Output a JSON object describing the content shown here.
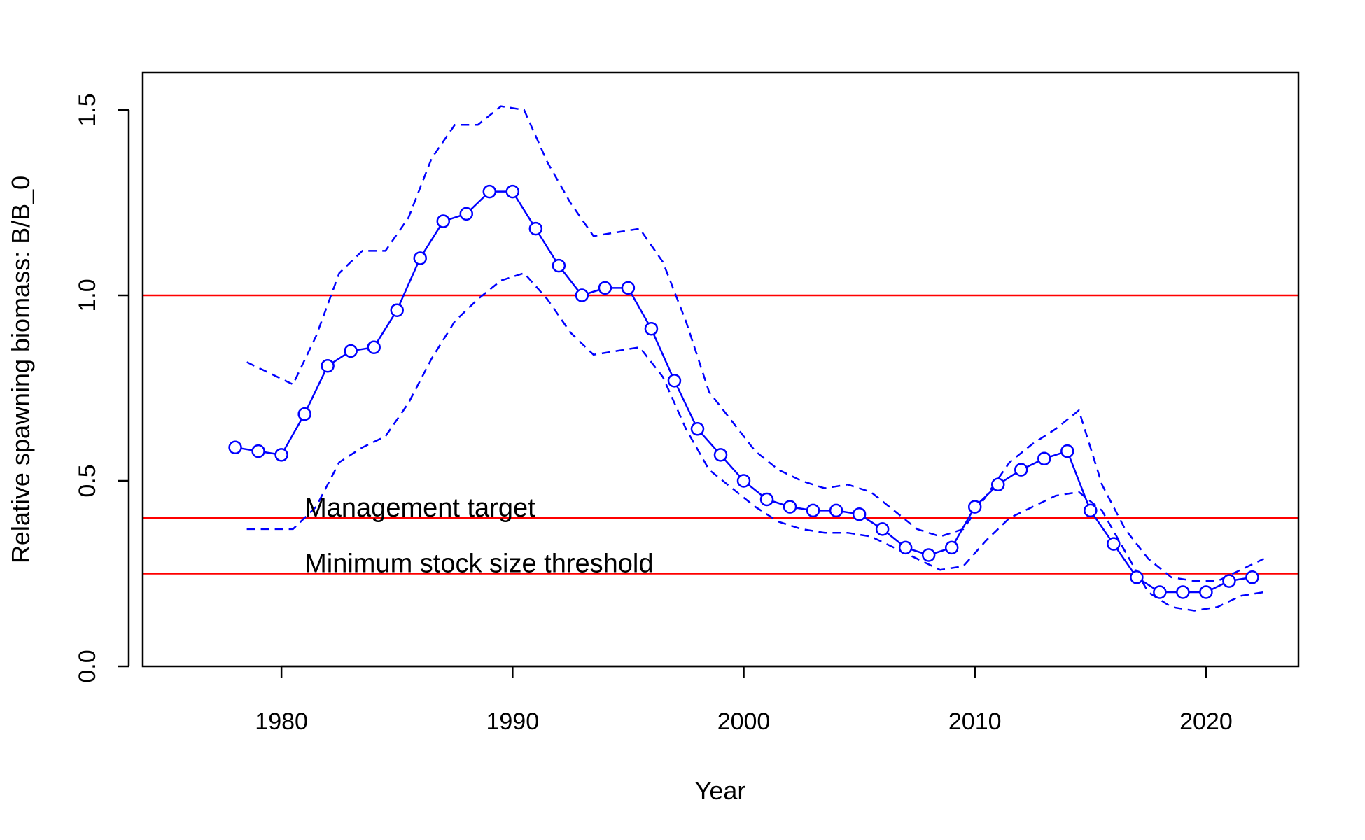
{
  "chart_data": {
    "type": "line",
    "title": "",
    "xlabel": "Year",
    "ylabel": "Relative spawning biomass: B/B_0",
    "xlim": [
      1974,
      2024
    ],
    "ylim": [
      0,
      1.6
    ],
    "x_ticks": [
      "1980",
      "1990",
      "2000",
      "2010",
      "2020"
    ],
    "y_ticks": [
      "0.0",
      "0.5",
      "1.0",
      "1.5"
    ],
    "grid": false,
    "legend": "none",
    "colors": {
      "series": "#0000ff",
      "reference": "#ff0000",
      "axis": "#000000"
    },
    "series": [
      {
        "style": "solid line with open circles",
        "x": [
          1978,
          1979,
          1980,
          1981,
          1982,
          1983,
          1984,
          1985,
          1986,
          1987,
          1988,
          1989,
          1990,
          1991,
          1992,
          1993,
          1994,
          1995,
          1996,
          1997,
          1998,
          1999,
          2000,
          2001,
          2002,
          2003,
          2004,
          2005,
          2006,
          2007,
          2008,
          2009,
          2010,
          2011,
          2012,
          2013,
          2014,
          2015,
          2016,
          2017,
          2018,
          2019,
          2020,
          2021,
          2022
        ],
        "values": [
          0.59,
          0.58,
          0.57,
          0.68,
          0.81,
          0.85,
          0.86,
          0.96,
          1.1,
          1.2,
          1.22,
          1.28,
          1.28,
          1.18,
          1.08,
          1.0,
          1.02,
          1.02,
          0.91,
          0.77,
          0.64,
          0.57,
          0.5,
          0.45,
          0.43,
          0.42,
          0.42,
          0.41,
          0.37,
          0.32,
          0.3,
          0.32,
          0.43,
          0.49,
          0.53,
          0.56,
          0.58,
          0.42,
          0.33,
          0.24,
          0.2,
          0.2,
          0.2,
          0.23,
          0.24
        ]
      },
      {
        "style": "dashed upper bound",
        "x": [
          1978.5,
          1980.5,
          1981.5,
          1982.5,
          1983.5,
          1984.5,
          1985.5,
          1986.5,
          1987.5,
          1988.5,
          1989.5,
          1990.5,
          1991.5,
          1992.5,
          1993.5,
          1994.5,
          1995.5,
          1996.5,
          1997.5,
          1998.5,
          1999.5,
          2000.5,
          2001.5,
          2002.5,
          2003.5,
          2004.5,
          2005.5,
          2006.5,
          2007.5,
          2008.5,
          2009.5,
          2010.5,
          2011.5,
          2012.5,
          2013.5,
          2014.5,
          2015.5,
          2016.5,
          2017.5,
          2018.5,
          2019.5,
          2020.5,
          2021.5,
          2022.5
        ],
        "values": [
          0.82,
          0.76,
          0.89,
          1.06,
          1.12,
          1.12,
          1.21,
          1.37,
          1.46,
          1.46,
          1.51,
          1.5,
          1.36,
          1.25,
          1.16,
          1.17,
          1.18,
          1.09,
          0.93,
          0.74,
          0.66,
          0.58,
          0.53,
          0.5,
          0.48,
          0.49,
          0.47,
          0.42,
          0.37,
          0.35,
          0.37,
          0.46,
          0.55,
          0.6,
          0.64,
          0.69,
          0.49,
          0.37,
          0.29,
          0.24,
          0.23,
          0.23,
          0.26,
          0.29
        ]
      },
      {
        "style": "dashed lower bound",
        "x": [
          1978.5,
          1980.5,
          1981.5,
          1982.5,
          1983.5,
          1984.5,
          1985.5,
          1986.5,
          1987.5,
          1988.5,
          1989.5,
          1990.5,
          1991.5,
          1992.5,
          1993.5,
          1994.5,
          1995.5,
          1996.5,
          1997.5,
          1998.5,
          1999.5,
          2000.5,
          2001.5,
          2002.5,
          2003.5,
          2004.5,
          2005.5,
          2006.5,
          2007.5,
          2008.5,
          2009.5,
          2010.5,
          2011.5,
          2012.5,
          2013.5,
          2014.5,
          2015.5,
          2016.5,
          2017.5,
          2018.5,
          2019.5,
          2020.5,
          2021.5,
          2022.5
        ],
        "values": [
          0.37,
          0.37,
          0.43,
          0.55,
          0.59,
          0.62,
          0.71,
          0.83,
          0.93,
          0.99,
          1.04,
          1.06,
          0.99,
          0.9,
          0.84,
          0.85,
          0.86,
          0.78,
          0.64,
          0.53,
          0.48,
          0.43,
          0.39,
          0.37,
          0.36,
          0.36,
          0.35,
          0.32,
          0.29,
          0.26,
          0.27,
          0.34,
          0.4,
          0.43,
          0.46,
          0.47,
          0.42,
          0.31,
          0.2,
          0.16,
          0.15,
          0.16,
          0.19,
          0.2
        ]
      }
    ],
    "reference_lines": [
      {
        "y": 1.0,
        "label": ""
      },
      {
        "y": 0.4,
        "label": "Management target"
      },
      {
        "y": 0.25,
        "label": "Minimum stock size threshold"
      }
    ]
  }
}
